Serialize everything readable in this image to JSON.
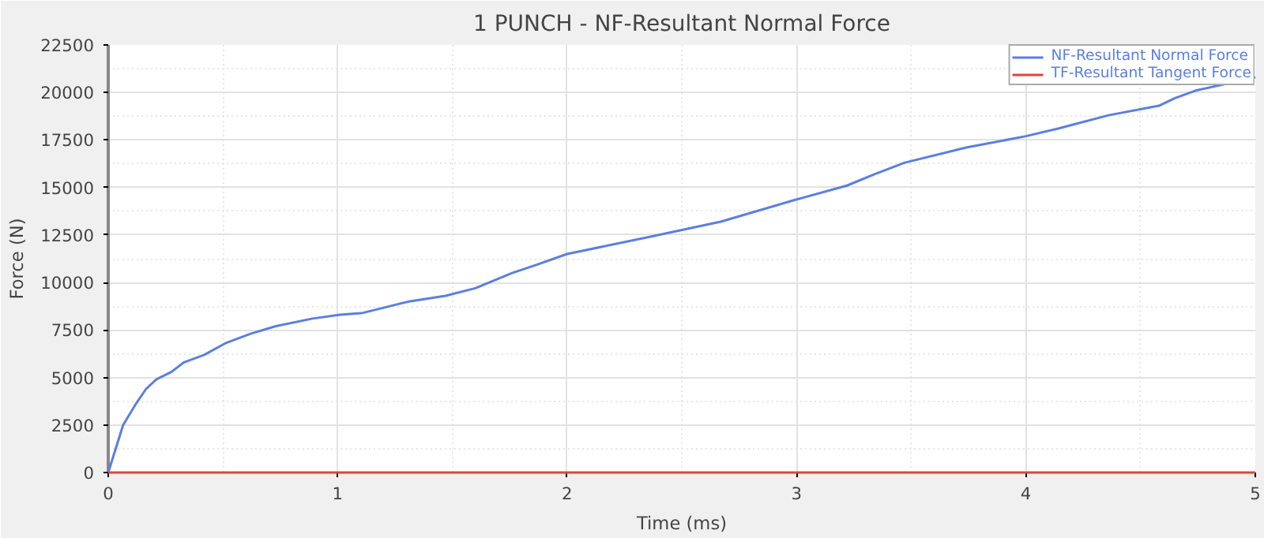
{
  "chart_data": {
    "type": "line",
    "title": "1 PUNCH - NF-Resultant Normal Force",
    "xlabel": "Time (ms)",
    "ylabel": "Force (N)",
    "xlim": [
      0,
      5
    ],
    "ylim": [
      0,
      22500
    ],
    "xticks": [
      0,
      1,
      2,
      3,
      4,
      5
    ],
    "yticks": [
      0,
      2500,
      5000,
      7500,
      10000,
      12500,
      15000,
      17500,
      20000,
      22500
    ],
    "grid": true,
    "legend": "top right",
    "series": [
      {
        "name": "NF-Resultant Normal Force",
        "color": "#5b7fe0",
        "x": [
          0,
          0.065,
          0.12,
          0.165,
          0.21,
          0.276,
          0.33,
          0.42,
          0.51,
          0.62,
          0.73,
          0.89,
          1.01,
          1.11,
          1.31,
          1.47,
          1.6,
          1.76,
          1.86,
          2.0,
          2.36,
          2.67,
          2.98,
          3.22,
          3.34,
          3.47,
          3.74,
          4.0,
          4.14,
          4.36,
          4.58,
          4.65,
          4.74,
          5.0
        ],
        "values": [
          0,
          2500,
          3600,
          4400,
          4900,
          5300,
          5800,
          6200,
          6800,
          7300,
          7700,
          8100,
          8300,
          8400,
          9000,
          9300,
          9700,
          10500,
          10900,
          11500,
          12400,
          13200,
          14300,
          15100,
          15700,
          16300,
          17100,
          17700,
          18100,
          18800,
          19300,
          19700,
          20100,
          20800
        ]
      },
      {
        "name": "TF-Resultant Tangent Force",
        "color": "#e0453a",
        "x": [
          0,
          5
        ],
        "values": [
          0,
          0
        ]
      }
    ]
  }
}
